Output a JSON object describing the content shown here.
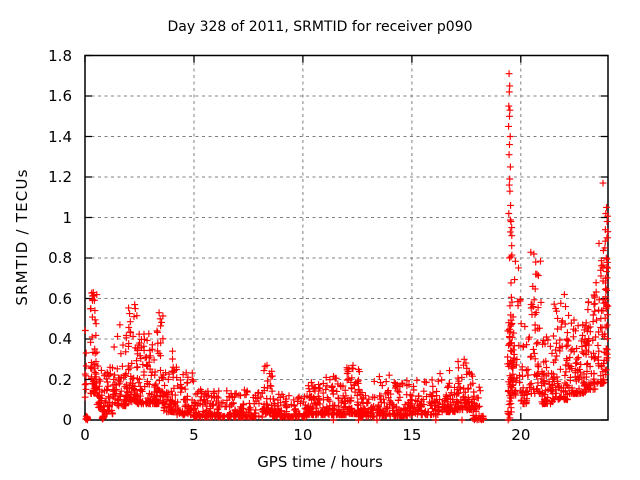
{
  "chart_data": {
    "type": "scatter",
    "title": "Day 328 of 2011, SRMTID for receiver p090",
    "xlabel": "GPS time / hours",
    "ylabel": "SRMTID / TECUs",
    "xlim": [
      0,
      24
    ],
    "ylim": [
      0,
      1.8
    ],
    "x_ticks": [
      0,
      5,
      10,
      15,
      20
    ],
    "x_tick_labels": [
      "0",
      "5",
      "10",
      "15",
      "20"
    ],
    "y_ticks": [
      0,
      0.2,
      0.4,
      0.6,
      0.8,
      1.0,
      1.2,
      1.4,
      1.6,
      1.8
    ],
    "y_tick_labels": [
      "0",
      "0.2",
      "0.4",
      "0.6",
      "0.8",
      "1",
      "1.2",
      "1.4",
      "1.6",
      "1.8"
    ],
    "grid": true,
    "legend": "none",
    "marker": "plus",
    "marker_color": "#ff0000",
    "grid_color": "#808080",
    "border_color": "#000000",
    "series_name": "SRMTID",
    "data_gap_hours": [
      18.3,
      19.38
    ],
    "max_value": 1.71,
    "max_value_hour": 19.46,
    "generator_seed": 328,
    "band_segments_columns": [
      "t_start",
      "t_end",
      "n_points",
      "y_min",
      "y_max",
      "shape_exponent"
    ],
    "band_segments": [
      [
        0.0,
        0.06,
        10,
        0.1,
        0.46,
        1.0
      ],
      [
        0.02,
        0.16,
        12,
        0.0,
        0.02,
        1.0
      ],
      [
        0.25,
        0.55,
        55,
        0.13,
        0.63,
        1.8
      ],
      [
        0.55,
        0.8,
        25,
        0.06,
        0.32,
        2.0
      ],
      [
        0.75,
        0.86,
        10,
        0.0,
        0.02,
        1.0
      ],
      [
        0.8,
        1.3,
        45,
        0.03,
        0.28,
        2.2
      ],
      [
        1.3,
        1.9,
        60,
        0.07,
        0.47,
        2.2
      ],
      [
        1.9,
        2.4,
        60,
        0.09,
        0.57,
        2.4
      ],
      [
        2.4,
        3.0,
        70,
        0.08,
        0.44,
        2.4
      ],
      [
        3.0,
        3.6,
        70,
        0.08,
        0.53,
        2.4
      ],
      [
        3.6,
        4.2,
        55,
        0.04,
        0.34,
        2.4
      ],
      [
        4.2,
        5.0,
        60,
        0.025,
        0.26,
        2.6
      ],
      [
        5.0,
        8.2,
        230,
        0.015,
        0.15,
        2.6
      ],
      [
        8.2,
        8.6,
        40,
        0.03,
        0.27,
        2.2
      ],
      [
        8.6,
        10.2,
        115,
        0.015,
        0.14,
        2.6
      ],
      [
        10.2,
        11.0,
        70,
        0.025,
        0.2,
        2.4
      ],
      [
        11.0,
        12.0,
        85,
        0.025,
        0.22,
        2.5
      ],
      [
        12.0,
        12.6,
        60,
        0.03,
        0.27,
        2.3
      ],
      [
        12.6,
        13.2,
        45,
        0.015,
        0.16,
        2.5
      ],
      [
        13.2,
        14.8,
        115,
        0.02,
        0.23,
        2.6
      ],
      [
        14.8,
        16.2,
        100,
        0.025,
        0.2,
        2.5
      ],
      [
        16.2,
        17.0,
        70,
        0.04,
        0.25,
        2.4
      ],
      [
        17.0,
        17.8,
        80,
        0.05,
        0.3,
        2.3
      ],
      [
        17.8,
        18.2,
        28,
        0.0,
        0.17,
        1.8
      ],
      [
        18.08,
        18.3,
        10,
        0.0,
        0.02,
        1.0
      ],
      [
        19.38,
        19.58,
        28,
        0.02,
        0.5,
        1.6
      ],
      [
        19.42,
        19.65,
        45,
        0.1,
        1.0,
        1.9
      ],
      [
        19.62,
        20.0,
        30,
        0.12,
        0.92,
        1.8
      ],
      [
        20.0,
        20.45,
        35,
        0.08,
        0.5,
        2.0
      ],
      [
        20.45,
        20.95,
        45,
        0.13,
        0.84,
        2.0
      ],
      [
        20.95,
        21.5,
        60,
        0.08,
        0.42,
        2.2
      ],
      [
        21.5,
        22.2,
        70,
        0.1,
        0.6,
        2.3
      ],
      [
        22.2,
        23.0,
        80,
        0.13,
        0.5,
        2.2
      ],
      [
        23.0,
        23.45,
        55,
        0.15,
        0.62,
        2.1
      ],
      [
        23.45,
        23.82,
        45,
        0.18,
        0.92,
        2.0
      ],
      [
        23.82,
        24.0,
        35,
        0.22,
        1.06,
        1.6
      ]
    ],
    "outlier_points": [
      [
        19.46,
        1.71
      ],
      [
        19.49,
        1.65
      ],
      [
        19.47,
        1.62
      ],
      [
        19.45,
        1.55
      ],
      [
        19.5,
        1.53
      ],
      [
        19.48,
        1.5
      ],
      [
        19.44,
        1.45
      ],
      [
        19.51,
        1.4
      ],
      [
        19.48,
        1.36
      ],
      [
        19.46,
        1.31
      ],
      [
        19.52,
        1.25
      ],
      [
        19.49,
        1.19
      ],
      [
        19.47,
        1.16
      ],
      [
        19.5,
        1.13
      ],
      [
        19.53,
        1.06
      ],
      [
        19.45,
        1.02
      ],
      [
        19.55,
        0.98
      ],
      [
        19.58,
        0.95
      ],
      [
        23.77,
        1.17
      ],
      [
        23.93,
        1.05
      ],
      [
        23.9,
        1.02
      ],
      [
        23.96,
        0.98
      ],
      [
        23.88,
        0.94
      ],
      [
        23.95,
        0.9
      ],
      [
        23.86,
        0.85
      ],
      [
        23.92,
        0.8
      ],
      [
        23.98,
        0.75
      ],
      [
        23.89,
        0.7
      ],
      [
        23.94,
        0.64
      ],
      [
        23.87,
        0.58
      ],
      [
        23.97,
        0.52
      ],
      [
        23.91,
        0.46
      ],
      [
        0.38,
        0.63
      ],
      [
        0.4,
        0.615
      ],
      [
        0.35,
        0.59
      ],
      [
        2.28,
        0.57
      ],
      [
        2.31,
        0.55
      ],
      [
        2.25,
        0.51
      ],
      [
        3.4,
        0.53
      ],
      [
        3.45,
        0.5
      ],
      [
        1.6,
        0.47
      ],
      [
        8.35,
        0.27
      ],
      [
        12.3,
        0.27
      ],
      [
        17.4,
        0.3
      ],
      [
        20.6,
        0.82
      ],
      [
        20.68,
        0.78
      ],
      [
        20.74,
        0.72
      ],
      [
        20.55,
        0.66
      ],
      [
        21.6,
        0.55
      ],
      [
        22.0,
        0.62
      ],
      [
        22.05,
        0.56
      ],
      [
        23.1,
        0.58
      ],
      [
        19.4,
        0.44
      ],
      [
        11.4,
        0
      ],
      [
        12.55,
        0
      ],
      [
        13.4,
        0
      ],
      [
        16.1,
        0
      ],
      [
        17.3,
        0
      ],
      [
        19.42,
        0
      ],
      [
        19.5,
        0.01
      ]
    ]
  }
}
